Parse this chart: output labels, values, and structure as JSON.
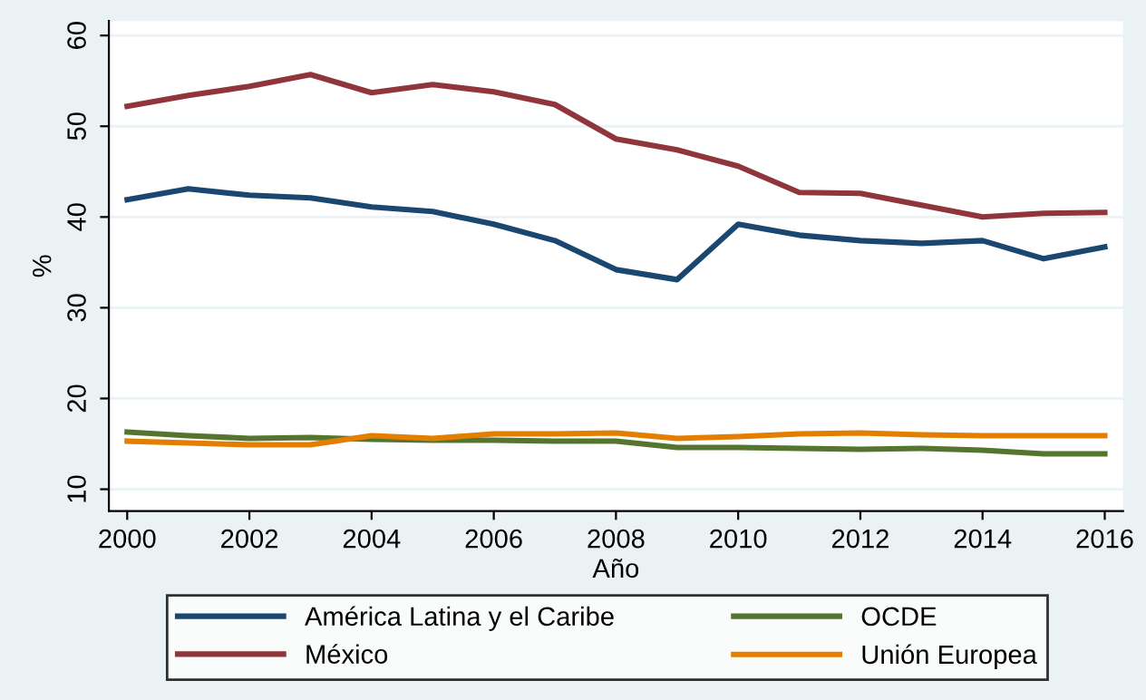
{
  "chart_data": {
    "type": "line",
    "xlabel": "Año",
    "ylabel": "%",
    "x": [
      2000,
      2001,
      2002,
      2003,
      2004,
      2005,
      2006,
      2007,
      2008,
      2009,
      2010,
      2011,
      2012,
      2013,
      2014,
      2015,
      2016
    ],
    "series": [
      {
        "name": "América Latina y el Caribe",
        "color": "#1a476f",
        "values": [
          41.9,
          43.1,
          42.4,
          42.1,
          41.1,
          40.6,
          39.2,
          37.4,
          34.2,
          33.1,
          39.2,
          38.0,
          37.4,
          37.1,
          37.4,
          35.4,
          36.7
        ]
      },
      {
        "name": "México",
        "color": "#90353b",
        "values": [
          52.2,
          53.4,
          54.4,
          55.7,
          53.7,
          54.6,
          53.8,
          52.4,
          48.6,
          47.4,
          45.6,
          42.7,
          42.6,
          41.3,
          40.0,
          40.4,
          40.5
        ]
      },
      {
        "name": "OCDE",
        "color": "#55752f",
        "values": [
          16.3,
          15.9,
          15.6,
          15.7,
          15.5,
          15.4,
          15.4,
          15.3,
          15.3,
          14.6,
          14.6,
          14.5,
          14.4,
          14.5,
          14.3,
          13.9,
          13.9
        ]
      },
      {
        "name": "Unión Europea",
        "color": "#e37e00",
        "values": [
          15.3,
          15.1,
          14.9,
          14.9,
          15.9,
          15.6,
          16.1,
          16.1,
          16.2,
          15.6,
          15.8,
          16.1,
          16.2,
          16.0,
          15.9,
          15.9,
          15.9
        ]
      }
    ],
    "xlim": [
      1999.7,
      2016.3
    ],
    "ylim": [
      7.6,
      61.6
    ],
    "xticks": [
      2000,
      2002,
      2004,
      2006,
      2008,
      2010,
      2012,
      2014,
      2016
    ],
    "yticks": [
      10,
      20,
      30,
      40,
      50,
      60
    ],
    "grid": "y",
    "legend": "bottom",
    "marker": "none",
    "line_style": "solid"
  }
}
